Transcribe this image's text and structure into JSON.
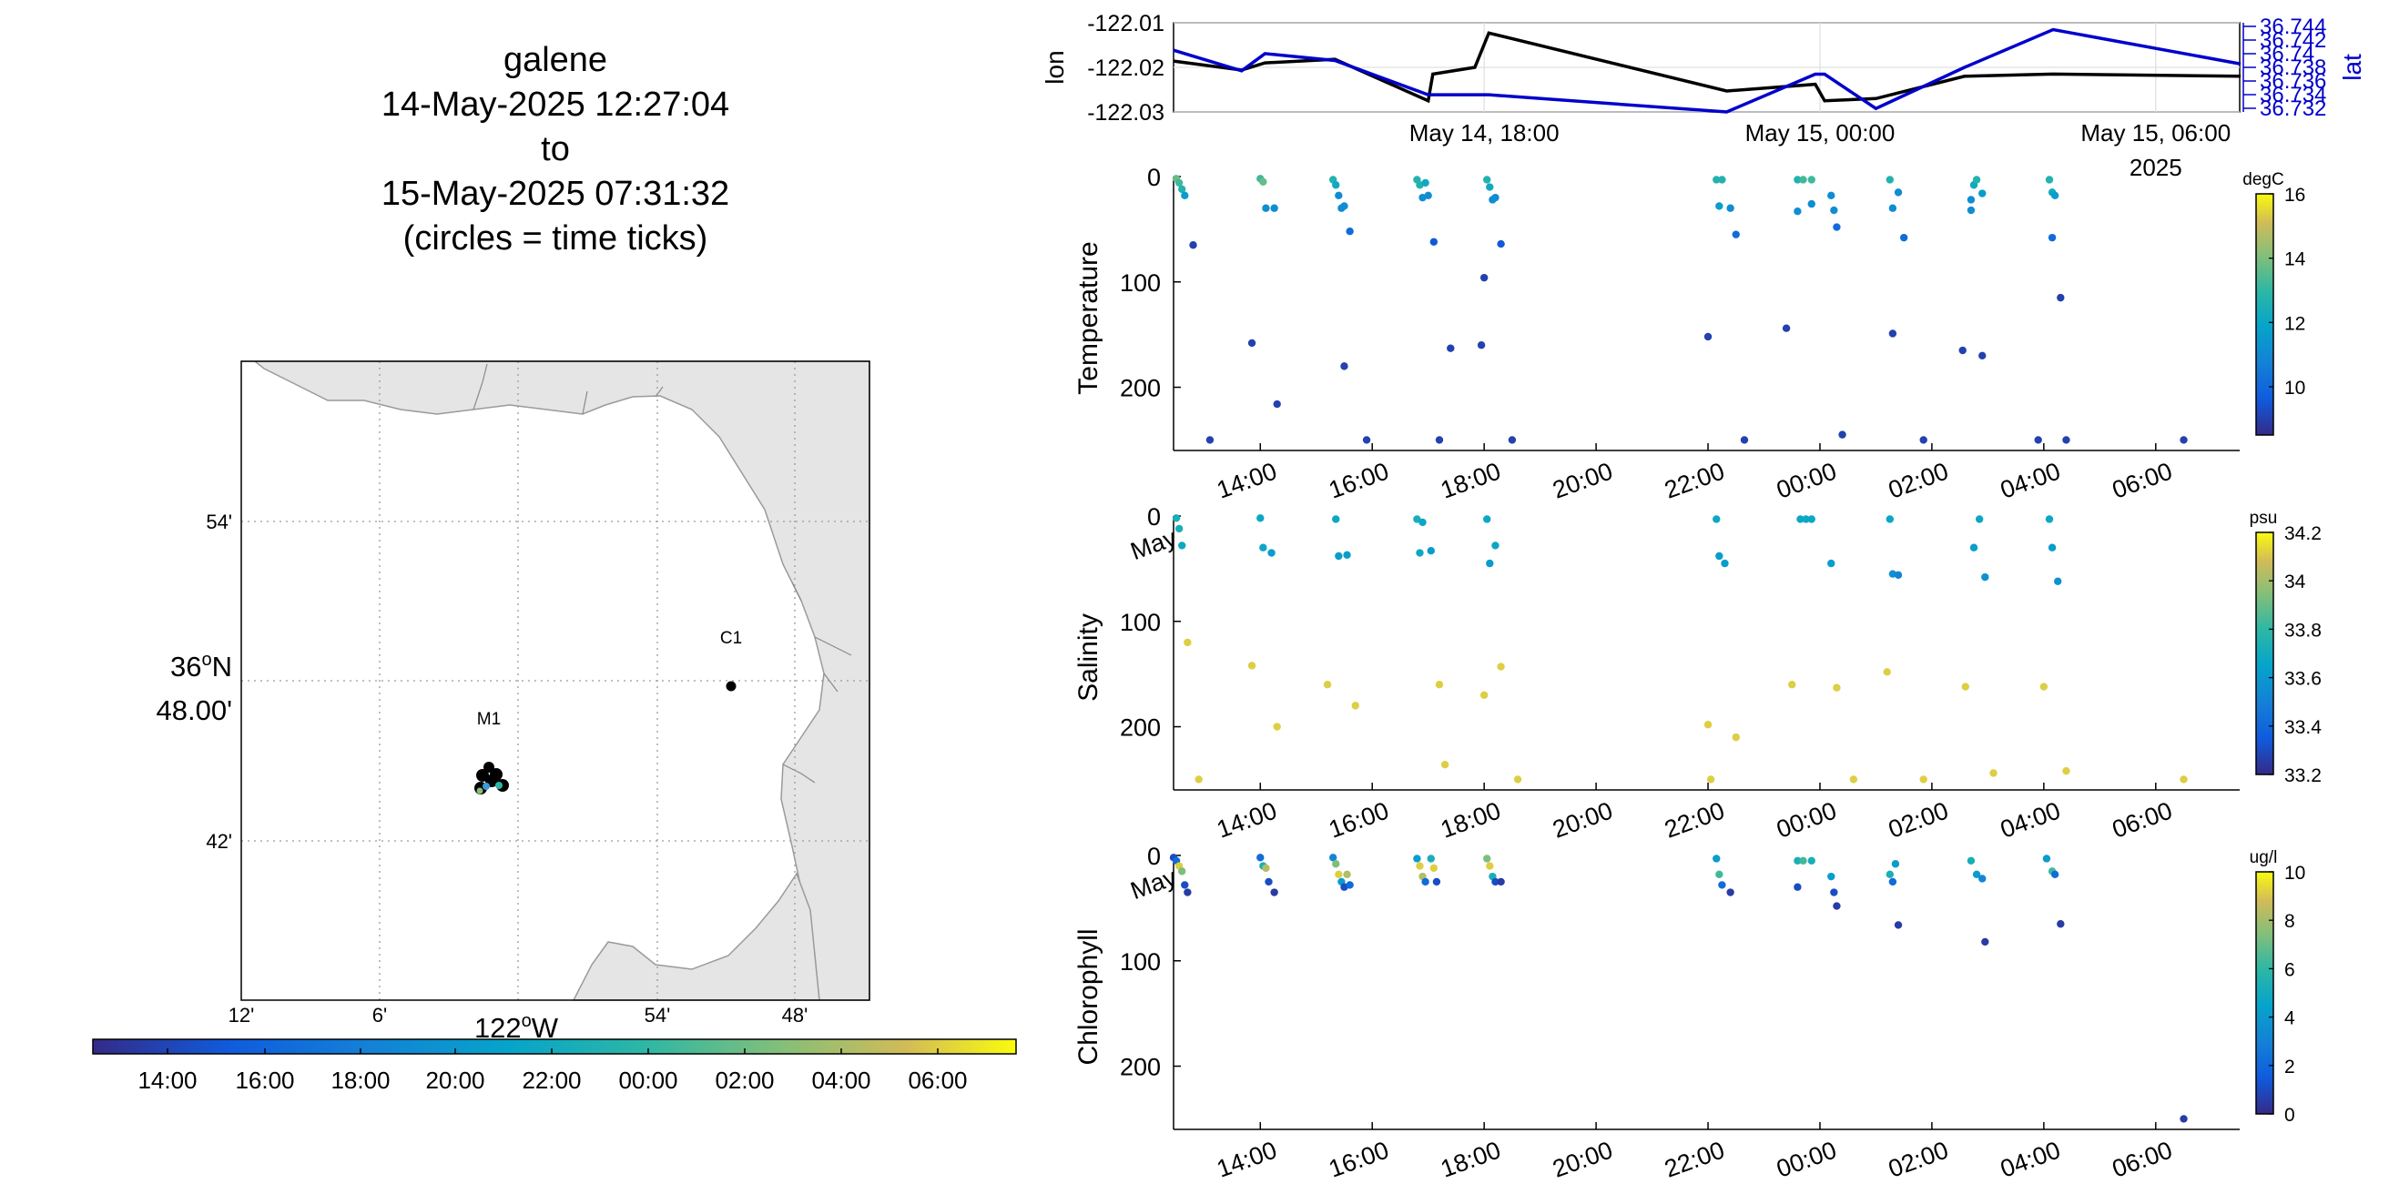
{
  "title": {
    "vehicle": "galene",
    "start": "14-May-2025 12:27:04",
    "to": "to",
    "end": "15-May-2025 07:31:32",
    "note": "(circles = time ticks)"
  },
  "map": {
    "lat_ticks": [
      "54'",
      "42'"
    ],
    "lat_center": {
      "deg": "36",
      "sup": "o",
      "hemi": "N",
      "min": "48.00'"
    },
    "lon_ticks": [
      "12'",
      "6'",
      "54'",
      "48'"
    ],
    "lon_center": {
      "deg": "122",
      "sup": "o",
      "hemi": "W"
    },
    "stations": [
      {
        "name": "C1"
      },
      {
        "name": "M1"
      }
    ],
    "colors": {
      "land": "#e5e5e5",
      "water": "#ffffff",
      "coast": "#9a9a9a",
      "grid": "#9a9a9a"
    }
  },
  "time_colorbar": {
    "labels": [
      "14:00",
      "16:00",
      "18:00",
      "20:00",
      "22:00",
      "00:00",
      "02:00",
      "04:00",
      "06:00"
    ],
    "colormap": "parula"
  },
  "chart_data": [
    {
      "type": "line",
      "name": "lon-lat track",
      "ylabel": "lon",
      "y2label": "lat",
      "ylim": [
        -122.03,
        -122.01
      ],
      "yticks": [
        "-122.01",
        "-122.02",
        "-122.03"
      ],
      "y2ticks": [
        "36.744",
        "36.742",
        "36.74",
        "36.738",
        "36.736",
        "36.734",
        "36.732"
      ],
      "xticks": [
        "May 14, 18:00",
        "May 15, 00:00",
        "May 15, 06:00"
      ],
      "xsub": "2025",
      "x": [
        "May 14 12:27",
        "May 14 13:40",
        "May 14 14:05",
        "May 14 15:20",
        "May 14 17:00",
        "May 14 17:05",
        "May 14 17:50",
        "May 14 18:05",
        "May 14 22:20",
        "May 14 23:55",
        "May 15 00:05",
        "May 15 01:00",
        "May 15 02:35",
        "May 15 04:10",
        "May 15 07:31"
      ],
      "series": [
        {
          "name": "lon",
          "color": "#000000",
          "values": [
            -122.0186,
            -122.0206,
            -122.019,
            -122.0182,
            -122.0275,
            -122.0215,
            -122.02,
            -122.0123,
            -122.0253,
            -122.0238,
            -122.0275,
            -122.027,
            -122.022,
            -122.0215,
            -122.022
          ]
        },
        {
          "name": "lat",
          "color": "#0000cc",
          "values": [
            36.7405,
            36.7375,
            36.74,
            36.739,
            36.734,
            36.734,
            36.734,
            36.734,
            36.7315,
            36.737,
            36.737,
            36.732,
            36.738,
            36.7435,
            36.7385
          ]
        }
      ]
    },
    {
      "type": "scatter",
      "ylabel": "Temperature",
      "units": "degC",
      "ylim": [
        0,
        260
      ],
      "yticks": [
        "0",
        "100",
        "200"
      ],
      "clim": [
        8.5,
        16
      ],
      "cticks": [
        "16",
        "14",
        "12",
        "10"
      ],
      "xtick_labels": [
        "May",
        "14:00",
        "16:00",
        "18:00",
        "20:00",
        "22:00",
        "00:00",
        "02:00",
        "04:00",
        "06:00"
      ],
      "points": [
        [
          12.5,
          2,
          13.5
        ],
        [
          12.55,
          6,
          13
        ],
        [
          12.6,
          12,
          12.5
        ],
        [
          12.65,
          18,
          11.5
        ],
        [
          12.8,
          65,
          9
        ],
        [
          13.1,
          250,
          9
        ],
        [
          13.85,
          158,
          9
        ],
        [
          14.0,
          2,
          13
        ],
        [
          14.05,
          5,
          13.5
        ],
        [
          14.1,
          30,
          11
        ],
        [
          14.25,
          30,
          11
        ],
        [
          14.3,
          216,
          9
        ],
        [
          15.3,
          3,
          12.5
        ],
        [
          15.35,
          8,
          12
        ],
        [
          15.4,
          18,
          11
        ],
        [
          15.45,
          30,
          11
        ],
        [
          15.5,
          28,
          11
        ],
        [
          15.6,
          52,
          10
        ],
        [
          15.5,
          180,
          9
        ],
        [
          15.9,
          250,
          9
        ],
        [
          16.8,
          3,
          12.5
        ],
        [
          16.85,
          8,
          12.5
        ],
        [
          16.9,
          20,
          11
        ],
        [
          16.95,
          6,
          12
        ],
        [
          17.0,
          18,
          11
        ],
        [
          17.1,
          62,
          9.5
        ],
        [
          17.2,
          250,
          9
        ],
        [
          17.4,
          163,
          9
        ],
        [
          18.05,
          3,
          12.5
        ],
        [
          18.1,
          10,
          12
        ],
        [
          18.15,
          22,
          11
        ],
        [
          18.2,
          20,
          11
        ],
        [
          18.3,
          64,
          9.5
        ],
        [
          18.0,
          96,
          9
        ],
        [
          17.95,
          160,
          9
        ],
        [
          18.5,
          250,
          9
        ],
        [
          22.15,
          3,
          12.5
        ],
        [
          22.2,
          28,
          11.5
        ],
        [
          22.25,
          3,
          12.5
        ],
        [
          22.4,
          30,
          11
        ],
        [
          22.5,
          55,
          10
        ],
        [
          22.65,
          250,
          9
        ],
        [
          22.0,
          152,
          9
        ],
        [
          23.6,
          3,
          12.5
        ],
        [
          23.7,
          3,
          13
        ],
        [
          23.85,
          3,
          13
        ],
        [
          23.6,
          33,
          11
        ],
        [
          23.85,
          26,
          11
        ],
        [
          24.2,
          18,
          11
        ],
        [
          24.25,
          32,
          11
        ],
        [
          24.3,
          48,
          10
        ],
        [
          23.4,
          144,
          9
        ],
        [
          24.4,
          245,
          9
        ],
        [
          25.25,
          3,
          12.5
        ],
        [
          25.3,
          30,
          11
        ],
        [
          25.4,
          15,
          11
        ],
        [
          25.5,
          58,
          10
        ],
        [
          25.3,
          149,
          9
        ],
        [
          25.85,
          250,
          9
        ],
        [
          26.7,
          22,
          11
        ],
        [
          26.75,
          8,
          12
        ],
        [
          26.8,
          3,
          12.5
        ],
        [
          26.9,
          16,
          11.5
        ],
        [
          26.7,
          32,
          11
        ],
        [
          26.55,
          165,
          9
        ],
        [
          26.9,
          170,
          9
        ],
        [
          27.9,
          250,
          9
        ],
        [
          28.1,
          3,
          12.5
        ],
        [
          28.15,
          15,
          12
        ],
        [
          28.2,
          18,
          11.5
        ],
        [
          28.15,
          58,
          10
        ],
        [
          28.3,
          115,
          9
        ],
        [
          28.4,
          250,
          9
        ],
        [
          30.5,
          250,
          9
        ]
      ]
    },
    {
      "type": "scatter",
      "ylabel": "Salinity",
      "units": "psu",
      "ylim": [
        0,
        260
      ],
      "yticks": [
        "0",
        "100",
        "200"
      ],
      "clim": [
        33.2,
        34.2
      ],
      "cticks": [
        "34.2",
        "34",
        "33.8",
        "33.6",
        "33.4",
        "33.2"
      ],
      "xtick_labels": [
        "May",
        "14:00",
        "16:00",
        "18:00",
        "20:00",
        "22:00",
        "00:00",
        "02:00",
        "04:00",
        "06:00"
      ],
      "points": [
        [
          12.5,
          2,
          33.7
        ],
        [
          12.55,
          12,
          33.7
        ],
        [
          12.6,
          28,
          33.65
        ],
        [
          12.7,
          120,
          34.1
        ],
        [
          12.9,
          250,
          34.1
        ],
        [
          13.85,
          142,
          34.1
        ],
        [
          14.0,
          2,
          33.65
        ],
        [
          14.05,
          30,
          33.65
        ],
        [
          14.2,
          35,
          33.6
        ],
        [
          14.3,
          200,
          34.1
        ],
        [
          15.2,
          160,
          34.1
        ],
        [
          15.35,
          3,
          33.65
        ],
        [
          15.4,
          38,
          33.6
        ],
        [
          15.55,
          37,
          33.6
        ],
        [
          15.7,
          180,
          34.1
        ],
        [
          16.8,
          3,
          33.7
        ],
        [
          16.85,
          35,
          33.65
        ],
        [
          16.9,
          6,
          33.65
        ],
        [
          17.05,
          33,
          33.6
        ],
        [
          17.2,
          160,
          34.1
        ],
        [
          17.3,
          236,
          34.1
        ],
        [
          18.05,
          3,
          33.65
        ],
        [
          18.1,
          45,
          33.6
        ],
        [
          18.2,
          28,
          33.65
        ],
        [
          18.0,
          170,
          34.1
        ],
        [
          18.3,
          143,
          34.1
        ],
        [
          18.6,
          250,
          34.1
        ],
        [
          22.0,
          198,
          34.1
        ],
        [
          22.15,
          3,
          33.65
        ],
        [
          22.2,
          38,
          33.6
        ],
        [
          22.3,
          45,
          33.6
        ],
        [
          22.5,
          210,
          34.1
        ],
        [
          22.05,
          250,
          34.1
        ],
        [
          23.65,
          3,
          33.65
        ],
        [
          23.75,
          3,
          33.65
        ],
        [
          23.85,
          3,
          33.65
        ],
        [
          23.5,
          160,
          34.1
        ],
        [
          24.2,
          45,
          33.6
        ],
        [
          24.3,
          163,
          34.1
        ],
        [
          24.6,
          250,
          34.1
        ],
        [
          25.25,
          3,
          33.65
        ],
        [
          25.3,
          55,
          33.55
        ],
        [
          25.4,
          56,
          33.5
        ],
        [
          25.2,
          148,
          34.1
        ],
        [
          25.85,
          250,
          34.1
        ],
        [
          26.75,
          30,
          33.6
        ],
        [
          26.85,
          3,
          33.65
        ],
        [
          26.95,
          58,
          33.55
        ],
        [
          26.6,
          162,
          34.1
        ],
        [
          27.1,
          244,
          34.1
        ],
        [
          28.1,
          3,
          33.65
        ],
        [
          28.15,
          30,
          33.6
        ],
        [
          28.25,
          62,
          33.55
        ],
        [
          28.0,
          162,
          34.1
        ],
        [
          28.4,
          242,
          34.1
        ],
        [
          30.5,
          250,
          34.1
        ]
      ]
    },
    {
      "type": "scatter",
      "ylabel": "Chlorophyll",
      "units": "ug/l",
      "ylim": [
        0,
        260
      ],
      "yticks": [
        "0",
        "100",
        "200"
      ],
      "clim": [
        0,
        10
      ],
      "cticks": [
        "10",
        "8",
        "6",
        "4",
        "2",
        "0"
      ],
      "xtick_labels": [
        "14:00",
        "16:00",
        "18:00",
        "20:00",
        "22:00",
        "00:00",
        "02:00",
        "04:00",
        "06:00"
      ],
      "points": [
        [
          12.45,
          2,
          1
        ],
        [
          12.5,
          5,
          2
        ],
        [
          12.55,
          10,
          9
        ],
        [
          12.6,
          15,
          7
        ],
        [
          12.65,
          28,
          1
        ],
        [
          12.7,
          35,
          0.5
        ],
        [
          14.0,
          2,
          2
        ],
        [
          14.05,
          10,
          5
        ],
        [
          14.1,
          12,
          8
        ],
        [
          14.15,
          25,
          1
        ],
        [
          14.25,
          35,
          0.5
        ],
        [
          15.3,
          2,
          3
        ],
        [
          15.35,
          8,
          7
        ],
        [
          15.4,
          18,
          9
        ],
        [
          15.45,
          25,
          4
        ],
        [
          15.5,
          30,
          1
        ],
        [
          15.55,
          18,
          8
        ],
        [
          15.6,
          28,
          2
        ],
        [
          16.8,
          3,
          4
        ],
        [
          16.85,
          10,
          9
        ],
        [
          16.9,
          20,
          8
        ],
        [
          16.95,
          25,
          2
        ],
        [
          17.05,
          3,
          5
        ],
        [
          17.1,
          12,
          9
        ],
        [
          17.15,
          25,
          1
        ],
        [
          18.05,
          3,
          7
        ],
        [
          18.1,
          10,
          9
        ],
        [
          18.15,
          20,
          5
        ],
        [
          18.2,
          25,
          1
        ],
        [
          18.3,
          25,
          0.5
        ],
        [
          22.15,
          3,
          4
        ],
        [
          22.2,
          18,
          6
        ],
        [
          22.25,
          28,
          2
        ],
        [
          22.4,
          35,
          0.5
        ],
        [
          23.6,
          5,
          5
        ],
        [
          23.7,
          5,
          6
        ],
        [
          23.85,
          5,
          5
        ],
        [
          23.6,
          30,
          1
        ],
        [
          24.2,
          20,
          4
        ],
        [
          24.25,
          35,
          1
        ],
        [
          24.3,
          48,
          0.5
        ],
        [
          25.25,
          18,
          5
        ],
        [
          25.3,
          25,
          2
        ],
        [
          25.4,
          66,
          0.5
        ],
        [
          25.35,
          8,
          4
        ],
        [
          26.7,
          5,
          5
        ],
        [
          26.8,
          18,
          4
        ],
        [
          26.9,
          22,
          3
        ],
        [
          26.95,
          82,
          0.5
        ],
        [
          28.05,
          3,
          4
        ],
        [
          28.15,
          15,
          6
        ],
        [
          28.2,
          18,
          2
        ],
        [
          28.3,
          65,
          0.5
        ],
        [
          30.5,
          250,
          0.5
        ]
      ]
    }
  ]
}
